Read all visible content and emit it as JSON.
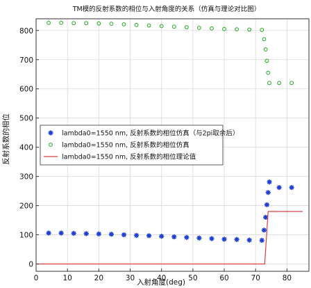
{
  "chart_data": {
    "type": "scatter",
    "title": "TM模的反射系数的相位与入射角度的关系（仿真与理论对比图）",
    "xlabel": "入射角度(deg)",
    "ylabel": "反射系数的相位",
    "xlim": [
      0,
      87
    ],
    "ylim": [
      -25,
      840
    ],
    "x_ticks": [
      0,
      10,
      20,
      30,
      40,
      50,
      60,
      70,
      80
    ],
    "y_ticks": [
      0,
      100,
      200,
      300,
      400,
      500,
      600,
      700,
      800
    ],
    "grid": true,
    "legend_position": "left-middle",
    "series": [
      {
        "name": "lambda0=1550 nm, 反射系数的相位仿真（与2pi取余后）",
        "marker": "star",
        "color": "#1f3fd1",
        "points": [
          [
            4,
            106
          ],
          [
            8,
            106
          ],
          [
            12,
            105
          ],
          [
            16,
            104
          ],
          [
            20,
            103
          ],
          [
            24,
            102
          ],
          [
            28,
            100
          ],
          [
            32,
            98
          ],
          [
            36,
            97
          ],
          [
            40,
            95
          ],
          [
            44,
            93
          ],
          [
            48,
            91
          ],
          [
            52,
            89
          ],
          [
            56,
            87
          ],
          [
            60,
            85
          ],
          [
            64,
            84
          ],
          [
            68,
            82
          ],
          [
            72,
            81
          ],
          [
            72.7,
            116
          ],
          [
            73.2,
            160
          ],
          [
            73.6,
            203
          ],
          [
            74,
            245
          ],
          [
            74.4,
            281
          ],
          [
            77.5,
            262
          ],
          [
            81.5,
            262
          ]
        ]
      },
      {
        "name": "lambda0=1550 nm, 反射系数的相位仿真",
        "marker": "circle",
        "color": "#1aa81a",
        "points": [
          [
            4,
            826
          ],
          [
            8,
            826
          ],
          [
            12,
            825
          ],
          [
            16,
            825
          ],
          [
            20,
            824
          ],
          [
            24,
            823
          ],
          [
            28,
            821
          ],
          [
            32,
            819
          ],
          [
            36,
            817
          ],
          [
            40,
            815
          ],
          [
            44,
            813
          ],
          [
            48,
            811
          ],
          [
            52,
            809
          ],
          [
            56,
            807
          ],
          [
            60,
            805
          ],
          [
            64,
            804
          ],
          [
            68,
            803
          ],
          [
            72,
            802
          ],
          [
            72.7,
            770
          ],
          [
            73.2,
            735
          ],
          [
            73.6,
            696
          ],
          [
            74,
            655
          ],
          [
            74.4,
            620
          ],
          [
            77.5,
            620
          ],
          [
            81.5,
            620
          ]
        ]
      },
      {
        "name": "lambda0=1550 nm, 反射系数的相位理论值",
        "marker": "line",
        "color": "#e03c3c",
        "points": [
          [
            0,
            0
          ],
          [
            72.9,
            0
          ],
          [
            74,
            180
          ],
          [
            85,
            180
          ]
        ]
      }
    ]
  }
}
